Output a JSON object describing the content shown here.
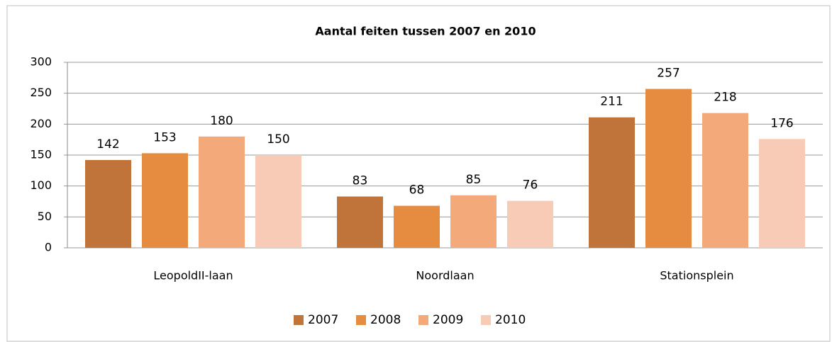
{
  "chart_data": {
    "type": "bar",
    "title": "Aantal feiten tussen 2007 en 2010",
    "categories": [
      "LeopoldII-laan",
      "Noordlaan",
      "Stationsplein"
    ],
    "series": [
      {
        "name": "2007",
        "color": "#c0743a",
        "values": [
          142,
          83,
          211
        ]
      },
      {
        "name": "2008",
        "color": "#e58c41",
        "values": [
          153,
          68,
          257
        ]
      },
      {
        "name": "2009",
        "color": "#f4a97a",
        "values": [
          180,
          85,
          218
        ]
      },
      {
        "name": "2010",
        "color": "#f7cbb5",
        "values": [
          150,
          76,
          176
        ]
      }
    ],
    "ylim": [
      0,
      300
    ],
    "yticks": [
      0,
      50,
      100,
      150,
      200,
      250,
      300
    ],
    "grid": true,
    "legend": "bottom"
  }
}
